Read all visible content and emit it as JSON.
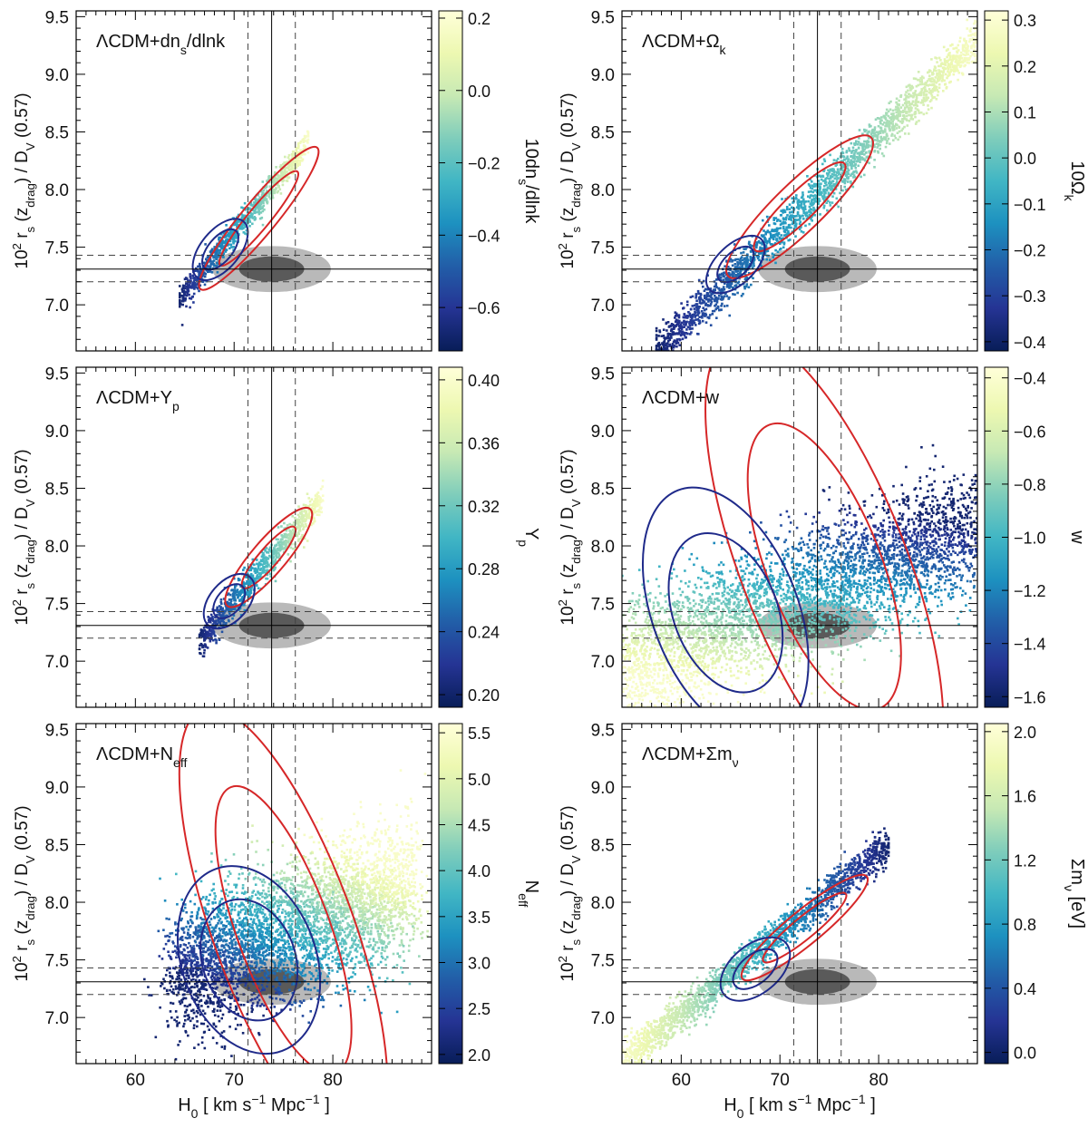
{
  "figure": {
    "xlabel_main": "H",
    "xlabel_sub": "0",
    "xlabel_units": "[ km s",
    "xlabel_exp": "−1",
    "xlabel_units2": " Mpc",
    "xlabel_exp2": "−1",
    "xlabel_close": " ]",
    "ylabel_prefix": "10",
    "ylabel_exp": "2",
    "ylabel_r": " r",
    "ylabel_rsub": "s",
    "ylabel_z": " (z",
    "ylabel_zsub": "drag",
    "ylabel_mid": ") / D",
    "ylabel_dsub": "V",
    "ylabel_end": " (0.57)"
  },
  "reference": {
    "h0_mean": 73.8,
    "h0_sigma": [
      71.4,
      76.2
    ],
    "ratio_mean": 7.31,
    "ratio_sigma": [
      7.2,
      7.43
    ],
    "ellipse_1sigma_rx": 3.3,
    "ellipse_1sigma_ry": 0.11,
    "ellipse_2sigma_rx": 6.0,
    "ellipse_2sigma_ry": 0.2,
    "inner_color": "#5a5a5a",
    "outer_color": "#b9b9b9"
  },
  "chart_data": [
    {
      "type": "scatter",
      "title_main": "ΛCDM+dn",
      "title_sub": "s",
      "title_tail": "/dlnk",
      "cbar_label": "10dn",
      "cbar_label_sub": "s",
      "cbar_label_tail": "/dlnk",
      "xlim": [
        54,
        90
      ],
      "ylim": [
        6.6,
        9.55
      ],
      "xticks": [
        60,
        70,
        80
      ],
      "yticks": [
        "7.0",
        "7.5",
        "8.0",
        "8.5",
        "9.0",
        "9.5"
      ],
      "cbar_range": [
        -0.72,
        0.22
      ],
      "cbar_ticks": [
        "0.2",
        "0.0",
        "−0.2",
        "−0.4",
        "−0.6"
      ],
      "cbar_tick_values": [
        0.2,
        0.0,
        -0.2,
        -0.4,
        -0.6
      ],
      "cloud": {
        "x0": 64.5,
        "y0": 7.05,
        "x1": 77.5,
        "y1": 8.4,
        "width": 0.06,
        "n": 900
      },
      "red_contours": {
        "cx": 72.5,
        "cy": 7.75,
        "rx": [
          4.5,
          6.8
        ],
        "ry": [
          0.045,
          0.07
        ]
      },
      "blue_contours": {
        "cx": 68.6,
        "cy": 7.48,
        "rx": [
          1.8,
          2.7
        ],
        "ry": [
          0.05,
          0.08
        ]
      },
      "color_trend": 1
    },
    {
      "type": "scatter",
      "title_main": "ΛCDM+Ω",
      "title_sub": "k",
      "title_tail": "",
      "cbar_label": "10Ω",
      "cbar_label_sub": "k",
      "cbar_label_tail": "",
      "xlim": [
        54,
        90
      ],
      "ylim": [
        6.6,
        9.55
      ],
      "xticks": [
        60,
        70,
        80
      ],
      "yticks": [
        "7.0",
        "7.5",
        "8.0",
        "8.5",
        "9.0",
        "9.5"
      ],
      "cbar_range": [
        -0.42,
        0.32
      ],
      "cbar_ticks": [
        "0.3",
        "0.2",
        "0.1",
        "0.0",
        "−0.1",
        "−0.2",
        "−0.3",
        "−0.4"
      ],
      "cbar_tick_values": [
        0.3,
        0.2,
        0.1,
        0.0,
        -0.1,
        -0.2,
        -0.3,
        -0.4
      ],
      "cloud": {
        "x0": 57.5,
        "y0": 6.6,
        "x1": 90,
        "y1": 9.3,
        "width": 0.09,
        "n": 2200
      },
      "red_contours": {
        "cx": 72.0,
        "cy": 7.85,
        "rx": [
          5.0,
          8.0
        ],
        "ry": [
          0.06,
          0.1
        ]
      },
      "blue_contours": {
        "cx": 65.5,
        "cy": 7.35,
        "rx": [
          1.8,
          2.9
        ],
        "ry": [
          0.05,
          0.08
        ]
      },
      "color_trend": 1
    },
    {
      "type": "scatter",
      "title_main": "ΛCDM+Y",
      "title_sub": "p",
      "title_tail": "",
      "cbar_label": "Y",
      "cbar_label_sub": "p",
      "cbar_label_tail": "",
      "xlim": [
        54,
        90
      ],
      "ylim": [
        6.6,
        9.55
      ],
      "xticks": [
        60,
        70,
        80
      ],
      "yticks": [
        "7.0",
        "7.5",
        "8.0",
        "8.5",
        "9.0",
        "9.5"
      ],
      "cbar_range": [
        0.192,
        0.408
      ],
      "cbar_ticks": [
        "0.40",
        "0.36",
        "0.32",
        "0.28",
        "0.24",
        "0.20"
      ],
      "cbar_tick_values": [
        0.4,
        0.36,
        0.32,
        0.28,
        0.24,
        0.2
      ],
      "cloud": {
        "x0": 66.5,
        "y0": 7.17,
        "x1": 79.0,
        "y1": 8.42,
        "width": 0.07,
        "n": 900
      },
      "red_contours": {
        "cx": 73.5,
        "cy": 7.9,
        "rx": [
          3.0,
          4.8
        ],
        "ry": [
          0.04,
          0.07
        ]
      },
      "blue_contours": {
        "cx": 69.5,
        "cy": 7.52,
        "rx": [
          1.5,
          2.4
        ],
        "ry": [
          0.05,
          0.08
        ]
      },
      "color_trend": 1
    },
    {
      "type": "scatter",
      "title_main": "ΛCDM+w",
      "title_sub": "",
      "title_tail": "",
      "cbar_label": "w",
      "cbar_label_sub": "",
      "cbar_label_tail": "",
      "xlim": [
        54,
        90
      ],
      "ylim": [
        6.6,
        9.55
      ],
      "xticks": [
        60,
        70,
        80
      ],
      "yticks": [
        "7.0",
        "7.5",
        "8.0",
        "8.5",
        "9.0",
        "9.5"
      ],
      "cbar_range": [
        -1.64,
        -0.36
      ],
      "cbar_ticks": [
        "−0.4",
        "−0.6",
        "−0.8",
        "−1.0",
        "−1.2",
        "−1.4",
        "−1.6"
      ],
      "cbar_tick_values": [
        -0.4,
        -0.6,
        -0.8,
        -1.0,
        -1.2,
        -1.4,
        -1.6
      ],
      "cloud": {
        "x0": 54,
        "y0": 6.95,
        "x1": 90,
        "y1": 8.15,
        "width": 0.28,
        "n": 4200
      },
      "red_contours": {
        "cx": 74.5,
        "cy": 7.82,
        "rx": [
          5.5,
          8.0
        ],
        "ry": [
          0.22,
          0.36
        ]
      },
      "blue_contours": {
        "cx": 64.5,
        "cy": 7.42,
        "rx": [
          5.0,
          7.0
        ],
        "ry": [
          0.12,
          0.19
        ]
      },
      "color_trend": -1
    },
    {
      "type": "scatter",
      "title_main": "ΛCDM+N",
      "title_sub": "eff",
      "title_tail": "",
      "cbar_label": "N",
      "cbar_label_sub": "eff",
      "cbar_label_tail": "",
      "xlim": [
        54,
        90
      ],
      "ylim": [
        6.6,
        9.55
      ],
      "xticks": [
        60,
        70,
        80
      ],
      "yticks": [
        "7.0",
        "7.5",
        "8.0",
        "8.5",
        "9.0",
        "9.5"
      ],
      "cbar_range": [
        1.9,
        5.6
      ],
      "cbar_ticks": [
        "5.5",
        "5.0",
        "4.5",
        "4.0",
        "3.5",
        "3.0",
        "2.5",
        "2.0"
      ],
      "cbar_tick_values": [
        5.5,
        5.0,
        4.5,
        4.0,
        3.5,
        3.0,
        2.5,
        2.0
      ],
      "cloud": {
        "x0": 64,
        "y0": 7.4,
        "x1": 88,
        "y1": 8.15,
        "width": 0.3,
        "n": 4200
      },
      "red_contours": {
        "cx": 75.0,
        "cy": 7.76,
        "rx": [
          4.5,
          6.8
        ],
        "ry": [
          0.22,
          0.34
        ]
      },
      "blue_contours": {
        "cx": 71.5,
        "cy": 7.5,
        "rx": [
          4.5,
          6.5
        ],
        "ry": [
          0.09,
          0.14
        ]
      },
      "color_trend": 1
    },
    {
      "type": "scatter",
      "title_main": "ΛCDM+Σm",
      "title_sub": "ν",
      "title_tail": "",
      "cbar_label": "Σm",
      "cbar_label_sub": "ν",
      "cbar_label_tail": " [eV]",
      "xlim": [
        54,
        90
      ],
      "ylim": [
        6.6,
        9.55
      ],
      "xticks": [
        60,
        70,
        80
      ],
      "yticks": [
        "7.0",
        "7.5",
        "8.0",
        "8.5",
        "9.0",
        "9.5"
      ],
      "cbar_range": [
        -0.07,
        2.05
      ],
      "cbar_ticks": [
        "2.0",
        "1.6",
        "1.2",
        "0.8",
        "0.4",
        "0.0"
      ],
      "cbar_tick_values": [
        2.0,
        1.6,
        1.2,
        0.8,
        0.4,
        0.0
      ],
      "cloud": {
        "x0": 54,
        "y0": 6.6,
        "x1": 81,
        "y1": 8.5,
        "width": 0.08,
        "n": 2000
      },
      "red_contours": {
        "cx": 72.5,
        "cy": 7.78,
        "rx": [
          4.5,
          6.8
        ],
        "ry": [
          0.045,
          0.07
        ]
      },
      "blue_contours": {
        "cx": 67.5,
        "cy": 7.42,
        "rx": [
          2.2,
          3.4
        ],
        "ry": [
          0.06,
          0.1
        ]
      },
      "color_trend": -1
    }
  ]
}
